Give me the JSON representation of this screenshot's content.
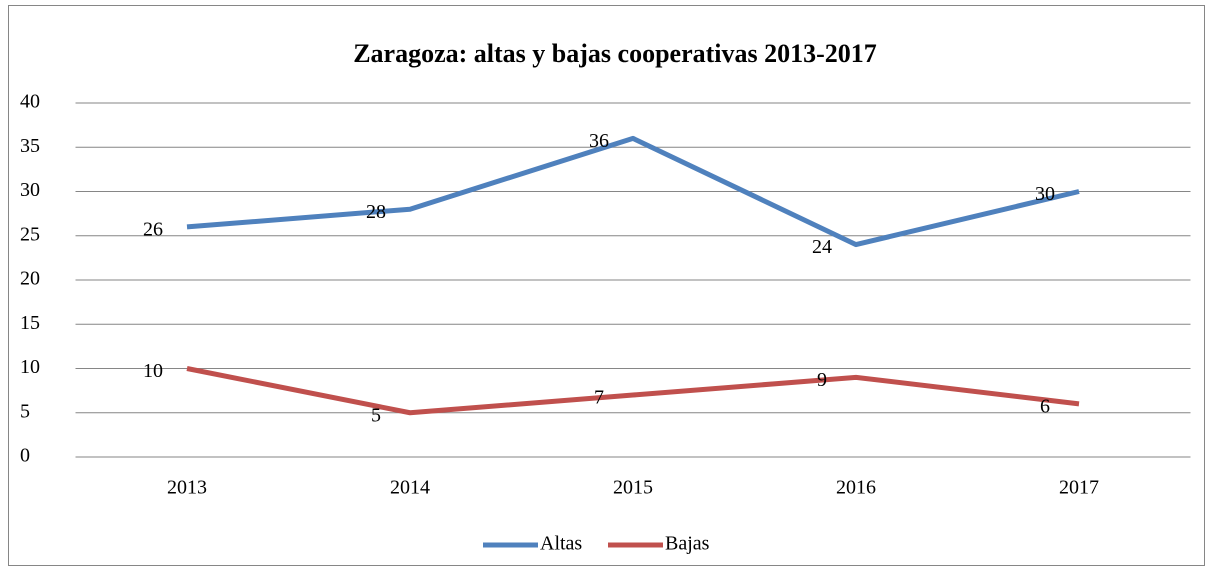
{
  "chart_data": {
    "type": "line",
    "title": "Zaragoza: altas y bajas cooperativas 2013-2017",
    "categories": [
      "2013",
      "2014",
      "2015",
      "2016",
      "2017"
    ],
    "series": [
      {
        "name": "Altas",
        "color": "#4f81bd",
        "values": [
          26,
          28,
          36,
          24,
          30
        ]
      },
      {
        "name": "Bajas",
        "color": "#c0504d",
        "values": [
          10,
          5,
          7,
          9,
          6
        ]
      }
    ],
    "ylim": [
      0,
      40
    ],
    "yticks": [
      0,
      5,
      10,
      15,
      20,
      25,
      30,
      35,
      40
    ],
    "grid": true,
    "legend": "bottom"
  }
}
